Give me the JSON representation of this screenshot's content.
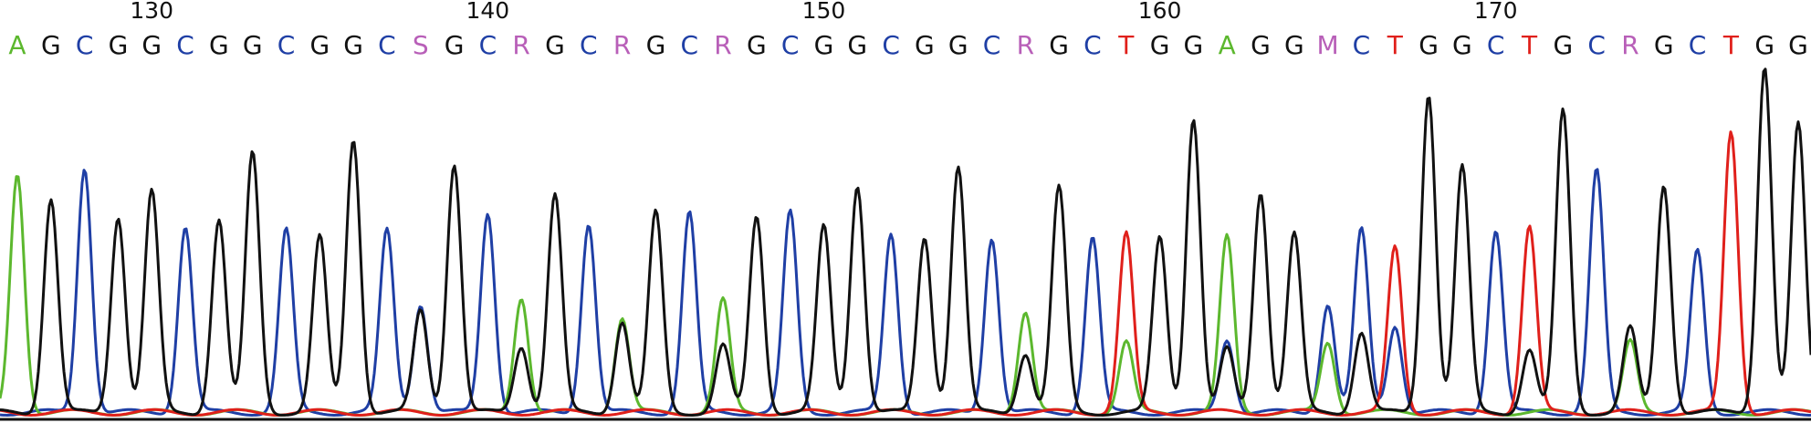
{
  "chart_data": {
    "type": "line",
    "colors": {
      "A": "#5cb82e",
      "C": "#1f3fa5",
      "G": "#111111",
      "T": "#e0201b",
      "ambiguous": "#b85fb8",
      "baseline": "#111111"
    },
    "ticks": [
      {
        "position": 130,
        "label": "130"
      },
      {
        "position": 140,
        "label": "140"
      },
      {
        "position": 150,
        "label": "150"
      },
      {
        "position": 160,
        "label": "160"
      },
      {
        "position": 170,
        "label": "170"
      }
    ],
    "first_position": 126,
    "bases": [
      "A",
      "G",
      "C",
      "G",
      "G",
      "C",
      "G",
      "G",
      "C",
      "G",
      "G",
      "C",
      "S",
      "G",
      "C",
      "R",
      "G",
      "C",
      "R",
      "G",
      "C",
      "R",
      "G",
      "C",
      "G",
      "G",
      "C",
      "G",
      "G",
      "C",
      "R",
      "G",
      "C",
      "T",
      "G",
      "G",
      "A",
      "G",
      "G",
      "M",
      "C",
      "T",
      "G",
      "G",
      "C",
      "T",
      "G",
      "C",
      "R",
      "G",
      "C",
      "T",
      "G",
      "G"
    ],
    "peaks": [
      {
        "A": 0.68
      },
      {
        "G": 0.61
      },
      {
        "C": 0.7
      },
      {
        "G": 0.56
      },
      {
        "G": 0.63
      },
      {
        "C": 0.53
      },
      {
        "G": 0.55
      },
      {
        "G": 0.74
      },
      {
        "C": 0.52
      },
      {
        "G": 0.5
      },
      {
        "G": 0.78
      },
      {
        "C": 0.52
      },
      {
        "C": 0.31,
        "G": 0.29
      },
      {
        "G": 0.71
      },
      {
        "C": 0.57
      },
      {
        "A": 0.33,
        "G": 0.19
      },
      {
        "G": 0.62
      },
      {
        "C": 0.54
      },
      {
        "A": 0.27,
        "G": 0.26
      },
      {
        "G": 0.57
      },
      {
        "C": 0.57
      },
      {
        "A": 0.32,
        "G": 0.19
      },
      {
        "G": 0.56
      },
      {
        "C": 0.57
      },
      {
        "G": 0.53
      },
      {
        "G": 0.65
      },
      {
        "C": 0.51
      },
      {
        "G": 0.5
      },
      {
        "G": 0.7
      },
      {
        "C": 0.5
      },
      {
        "A": 0.29,
        "G": 0.17
      },
      {
        "G": 0.64
      },
      {
        "C": 0.5
      },
      {
        "T": 0.51,
        "A": 0.2
      },
      {
        "G": 0.5
      },
      {
        "G": 0.84
      },
      {
        "A": 0.5,
        "C": 0.21,
        "G": 0.18
      },
      {
        "G": 0.63
      },
      {
        "G": 0.51
      },
      {
        "C": 0.31,
        "A": 0.2
      },
      {
        "C": 0.52,
        "G": 0.23
      },
      {
        "T": 0.47,
        "C": 0.25
      },
      {
        "G": 0.91
      },
      {
        "G": 0.7
      },
      {
        "C": 0.52
      },
      {
        "T": 0.53,
        "G": 0.18
      },
      {
        "G": 0.86
      },
      {
        "C": 0.69
      },
      {
        "A": 0.2,
        "G": 0.24
      },
      {
        "G": 0.65
      },
      {
        "C": 0.46
      },
      {
        "T": 0.8
      },
      {
        "G": 0.99
      },
      {
        "G": 0.82
      }
    ]
  }
}
